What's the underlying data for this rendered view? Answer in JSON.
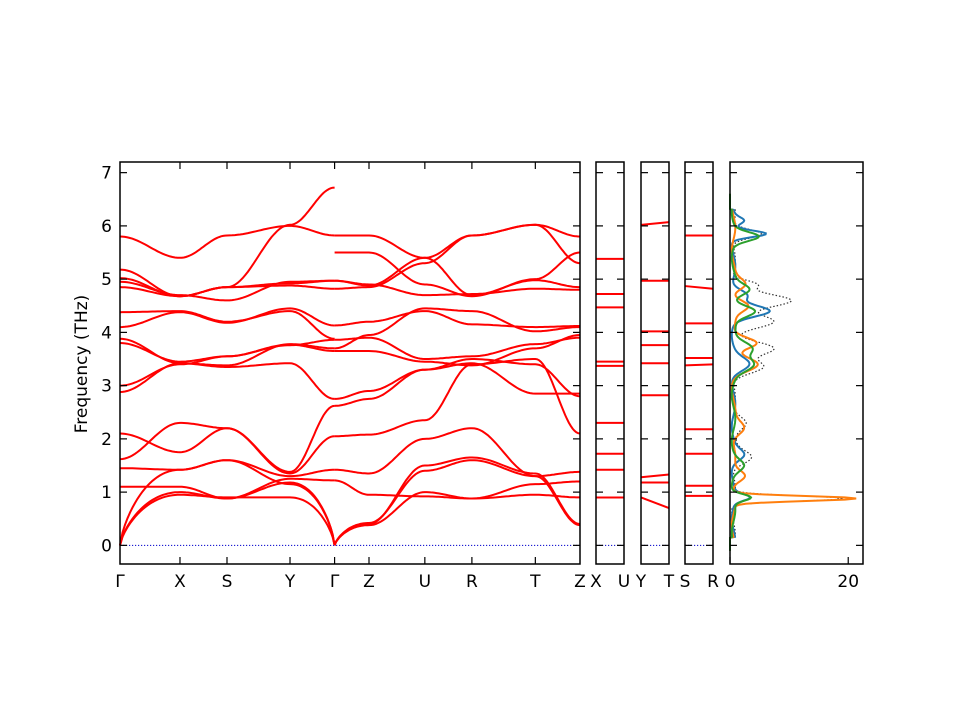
{
  "chart_data": {
    "type": "line",
    "ylabel": "Frequency (THz)",
    "ylim": [
      -0.35,
      7.2
    ],
    "y_ticks": [
      "0",
      "1",
      "2",
      "3",
      "4",
      "5",
      "6",
      "7"
    ],
    "y_tick_values": [
      0,
      1,
      2,
      3,
      4,
      5,
      6,
      7
    ],
    "band_color": "#ff0000",
    "zero_line_color": "#0000cc",
    "band_panels": [
      {
        "id": "path-main",
        "x_labels": [
          "Γ",
          "X",
          "S",
          "Y",
          "Γ",
          "Z",
          "U",
          "R",
          "T",
          "Z"
        ],
        "x_label_pos": [
          0,
          0.1304,
          0.2326,
          0.3696,
          0.4665,
          0.5413,
          0.6627,
          0.765,
          0.9029,
          1.0
        ],
        "branches": [
          [
            0,
            0.4665
          ],
          [
            0.4665,
            1.0
          ]
        ]
      },
      {
        "id": "path-xu",
        "x_labels": [
          "X",
          "U"
        ],
        "x_label_pos": [
          0,
          1
        ],
        "flat_bands": [
          0.9,
          1.42,
          1.72,
          2.3,
          3.37,
          3.45,
          4.47,
          4.72,
          5.38
        ],
        "slopes": [
          0,
          0,
          0,
          0,
          0,
          0,
          0,
          0,
          0
        ]
      },
      {
        "id": "path-yt",
        "x_labels": [
          "Y",
          "T"
        ],
        "x_label_pos": [
          0,
          1
        ],
        "flat_bands": [
          0.9,
          1.18,
          1.28,
          2.82,
          3.42,
          3.76,
          4.02,
          4.97,
          6.02
        ],
        "slopes": [
          -0.2,
          0,
          0.05,
          0,
          0,
          0,
          0,
          0,
          0.05
        ]
      },
      {
        "id": "path-sr",
        "x_labels": [
          "S",
          "R"
        ],
        "x_label_pos": [
          0,
          1
        ],
        "flat_bands": [
          0.93,
          1.12,
          1.72,
          2.18,
          3.38,
          3.52,
          4.17,
          4.87,
          5.82
        ],
        "slopes": [
          0,
          0,
          0,
          0,
          0.02,
          0,
          0,
          -0.05,
          0
        ]
      }
    ],
    "dos": {
      "x_ticks": [
        "0",
        "20"
      ],
      "x_tick_values": [
        0,
        20
      ],
      "xlim": [
        0,
        22.5
      ],
      "series": [
        {
          "color": "#333333",
          "style": "dotted",
          "peaks": [
            [
              0.88,
              18.5,
              0.05
            ],
            [
              1.65,
              3.2,
              0.12
            ],
            [
              2.3,
              2.4,
              0.12
            ],
            [
              3.35,
              5.2,
              0.12
            ],
            [
              3.7,
              6.5,
              0.12
            ],
            [
              4.2,
              7.0,
              0.12
            ],
            [
              4.6,
              9.5,
              0.12
            ],
            [
              4.9,
              4.0,
              0.08
            ],
            [
              5.85,
              5.0,
              0.08
            ]
          ]
        },
        {
          "color": "#1f77b4",
          "style": "solid",
          "peaks": [
            [
              0.9,
              2.5,
              0.06
            ],
            [
              1.7,
              1.6,
              0.1
            ],
            [
              3.4,
              2.5,
              0.12
            ],
            [
              4.4,
              5.8,
              0.1
            ],
            [
              4.7,
              2.5,
              0.1
            ],
            [
              5.85,
              5.6,
              0.06
            ],
            [
              6.1,
              1.5,
              0.06
            ]
          ]
        },
        {
          "color": "#ff7f0e",
          "style": "solid",
          "peaks": [
            [
              0.88,
              20.5,
              0.045
            ],
            [
              1.3,
              2.2,
              0.1
            ],
            [
              2.2,
              2.0,
              0.12
            ],
            [
              3.4,
              3.8,
              0.12
            ],
            [
              3.8,
              4.2,
              0.1
            ],
            [
              4.5,
              2.6,
              0.1
            ],
            [
              4.9,
              2.0,
              0.1
            ]
          ]
        },
        {
          "color": "#2ca02c",
          "style": "solid",
          "peaks": [
            [
              0.9,
              3.0,
              0.06
            ],
            [
              1.5,
              1.5,
              0.1
            ],
            [
              3.4,
              3.2,
              0.12
            ],
            [
              3.7,
              3.4,
              0.12
            ],
            [
              4.4,
              3.8,
              0.1
            ],
            [
              4.8,
              2.6,
              0.1
            ],
            [
              5.8,
              4.0,
              0.08
            ]
          ]
        }
      ]
    }
  }
}
